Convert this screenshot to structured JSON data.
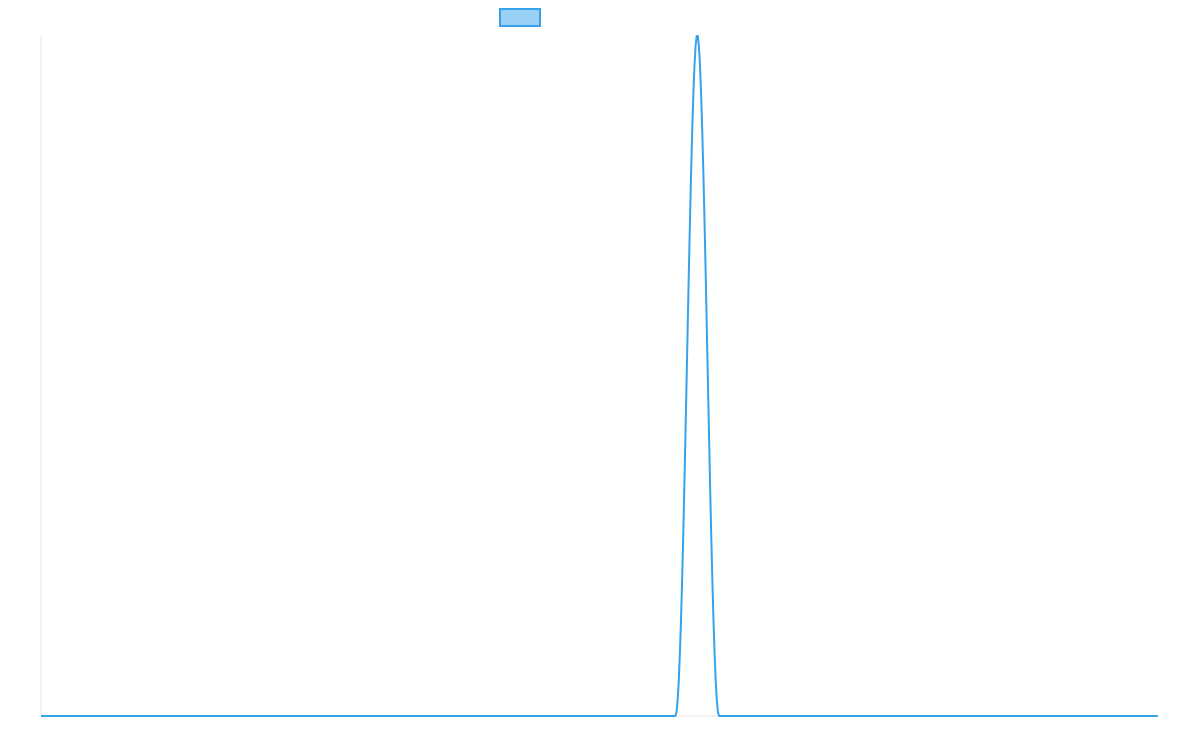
{
  "chart_data": {
    "type": "line",
    "title": "",
    "xlabel": "",
    "ylabel": "",
    "grid": false,
    "legend": {
      "position": "top-center",
      "entries": [
        ""
      ]
    },
    "xlim": [
      0,
      1000
    ],
    "ylim": [
      0,
      1
    ],
    "series": [
      {
        "color": "#36a2eb",
        "fill": "#9ad0f5",
        "x": [
          0,
          568,
          569,
          570,
          571,
          572,
          573,
          574,
          575,
          576,
          577,
          578,
          579,
          580,
          581,
          582,
          583,
          584,
          585,
          586,
          587,
          588,
          589,
          590,
          591,
          592,
          593,
          594,
          595,
          596,
          597,
          598,
          599,
          600,
          601,
          602,
          603,
          604,
          605,
          606,
          607,
          608,
          1000
        ],
        "y": [
          0,
          0,
          0.006,
          0.024,
          0.053,
          0.093,
          0.143,
          0.202,
          0.268,
          0.34,
          0.417,
          0.496,
          0.576,
          0.654,
          0.729,
          0.798,
          0.86,
          0.913,
          0.955,
          0.985,
          1.0,
          1.0,
          0.985,
          0.955,
          0.913,
          0.86,
          0.798,
          0.729,
          0.654,
          0.576,
          0.496,
          0.417,
          0.34,
          0.268,
          0.202,
          0.143,
          0.093,
          0.053,
          0.024,
          0.006,
          0,
          0,
          0
        ]
      }
    ]
  }
}
